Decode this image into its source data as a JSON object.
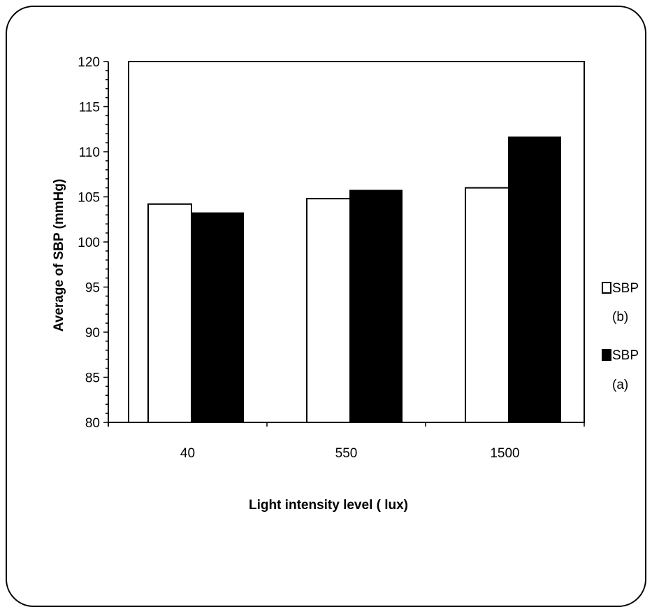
{
  "chart_data": {
    "type": "bar",
    "title": "",
    "xlabel": "Light intensity level ( lux)",
    "ylabel": "Average  of  SBP  (mmHg)",
    "categories": [
      "40",
      "550",
      "1500"
    ],
    "ylim": [
      80,
      120
    ],
    "yticks": [
      80,
      85,
      90,
      95,
      100,
      105,
      110,
      115,
      120
    ],
    "grid": false,
    "legend_position": "right",
    "series": [
      {
        "name": "SBP (b)",
        "legend_line1": "SBP",
        "legend_line2": "(b)",
        "color": "#ffffff",
        "values": [
          104.2,
          104.8,
          106.0
        ]
      },
      {
        "name": "SBP (a)",
        "legend_line1": "SBP",
        "legend_line2": "(a)",
        "color": "#000000",
        "values": [
          103.2,
          105.7,
          111.6
        ]
      }
    ]
  }
}
